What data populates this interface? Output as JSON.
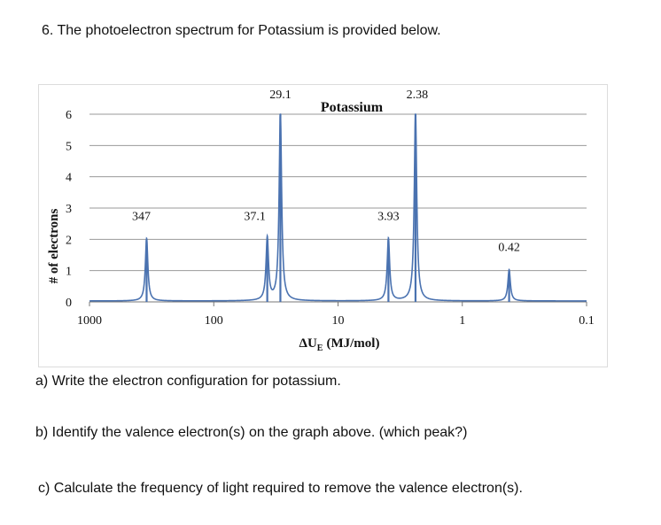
{
  "question": {
    "title": "6.  The photoelectron spectrum for Potassium is provided below.",
    "part_a": "a) Write the electron configuration for potassium.",
    "part_b": "b) Identify the valence electron(s) on the graph above. (which peak?)",
    "part_c": "c) Calculate the frequency of light required to remove the valence electron(s)."
  },
  "chart_data": {
    "type": "line",
    "title": "Potassium",
    "xlabel_main": "ΔU",
    "xlabel_sub": "E",
    "xlabel_unit": "(MJ/mol)",
    "ylabel": "# of electrons",
    "x_scale": "log-reversed",
    "xlim": [
      1000,
      0.1
    ],
    "ylim": [
      0,
      6
    ],
    "y_ticks": [
      "0",
      "1",
      "2",
      "3",
      "4",
      "5",
      "6"
    ],
    "x_ticks": [
      "1000",
      "100",
      "10",
      "1",
      "0.1"
    ],
    "x_tick_values": [
      1000,
      100,
      10,
      1,
      0.1
    ],
    "grid": "horizontal",
    "line_color": "#4a72b0",
    "peaks": [
      {
        "x": 347,
        "y": 2,
        "label": "347"
      },
      {
        "x": 37.1,
        "y": 2,
        "label": "37.1"
      },
      {
        "x": 29.1,
        "y": 6,
        "label": "29.1"
      },
      {
        "x": 3.93,
        "y": 2,
        "label": "3.93"
      },
      {
        "x": 2.38,
        "y": 6,
        "label": "2.38"
      },
      {
        "x": 0.42,
        "y": 1,
        "label": "0.42"
      }
    ]
  }
}
